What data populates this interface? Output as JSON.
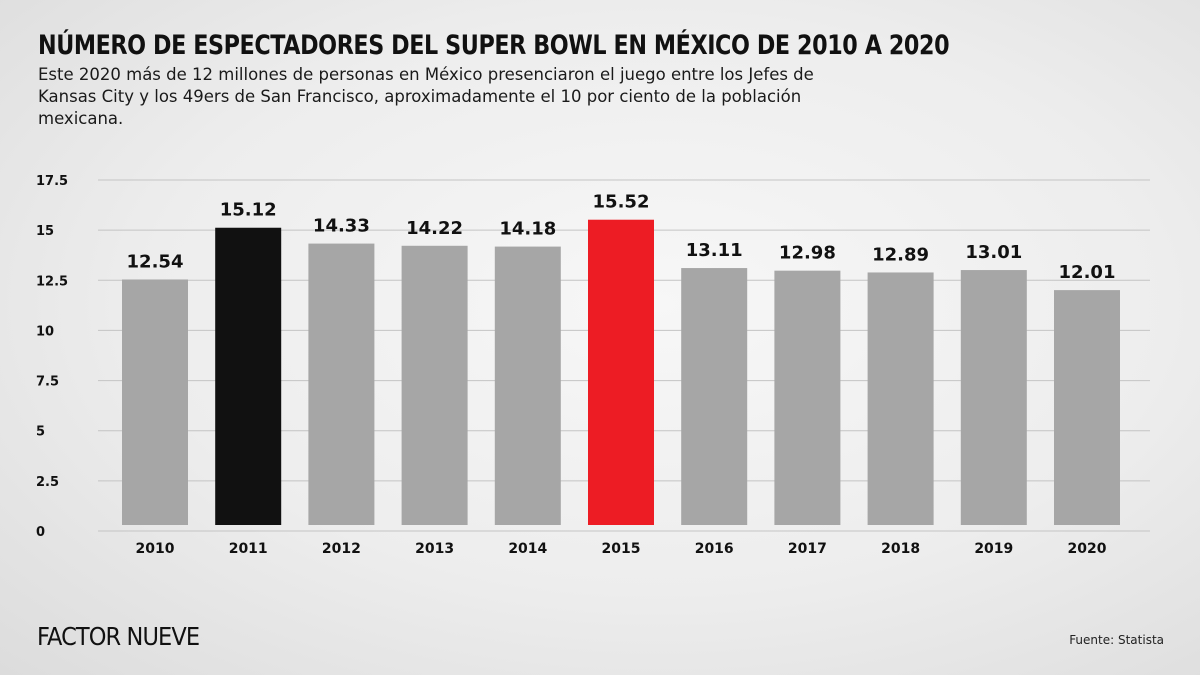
{
  "chart_data": {
    "type": "bar",
    "title": "NÚMERO DE ESPECTADORES DEL SUPER BOWL EN MÉXICO DE 2010 A 2020",
    "subtitle": "Este 2020 más de 12 millones de personas en México presenciaron el juego entre los Jefes de Kansas City y los 49ers de San Francisco, aproximadamente el 10 por ciento de la población mexicana.",
    "categories": [
      "2010",
      "2011",
      "2012",
      "2013",
      "2014",
      "2015",
      "2016",
      "2017",
      "2018",
      "2019",
      "2020"
    ],
    "values": [
      12.54,
      15.12,
      14.33,
      14.22,
      14.18,
      15.52,
      13.11,
      12.98,
      12.89,
      13.01,
      12.01
    ],
    "value_labels": [
      "12.54",
      "15.12",
      "14.33",
      "14.22",
      "14.18",
      "15.52",
      "13.11",
      "12.98",
      "12.89",
      "13.01",
      "12.01"
    ],
    "bar_colors": [
      "#a6a6a6",
      "#111111",
      "#a6a6a6",
      "#a6a6a6",
      "#a6a6a6",
      "#ed1c24",
      "#a6a6a6",
      "#a6a6a6",
      "#a6a6a6",
      "#a6a6a6",
      "#a6a6a6"
    ],
    "yticks": [
      "0",
      "2.5",
      "5",
      "7.5",
      "10",
      "12.5",
      "15",
      "17.5"
    ],
    "ylim": [
      0,
      17.5
    ],
    "xlabel": "",
    "ylabel": "",
    "grid": true,
    "legend": "none"
  },
  "footer": {
    "brand": "FACTOR NUEVE",
    "source": "Fuente: Statista"
  }
}
